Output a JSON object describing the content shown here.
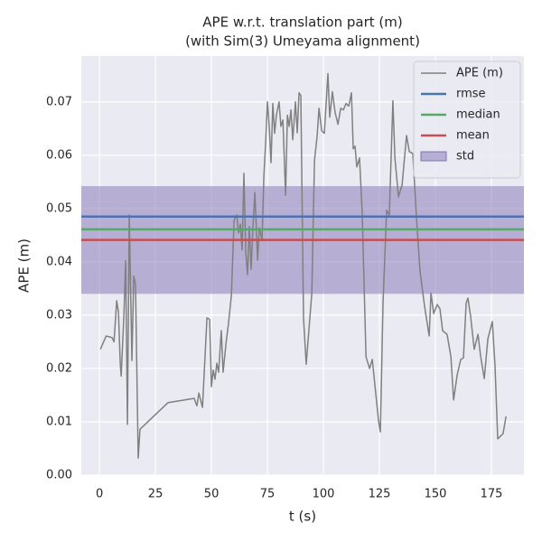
{
  "chart_data": {
    "type": "line",
    "title": "APE w.r.t. translation part (m)",
    "subtitle": "(with Sim(3) Umeyama alignment)",
    "xlabel": "t (s)",
    "ylabel": "APE (m)",
    "xlim": [
      -8.1,
      189.5
    ],
    "ylim": [
      0,
      0.0786
    ],
    "xticks": [
      0,
      25,
      50,
      75,
      100,
      125,
      150,
      175
    ],
    "yticks": [
      {
        "value": 0,
        "label": "0.00"
      },
      {
        "value": 0.01,
        "label": "0.01"
      },
      {
        "value": 0.02,
        "label": "0.02"
      },
      {
        "value": 0.03,
        "label": "0.03"
      },
      {
        "value": 0.04,
        "label": "0.04"
      },
      {
        "value": 0.05,
        "label": "0.05"
      },
      {
        "value": 0.06,
        "label": "0.06"
      },
      {
        "value": 0.07,
        "label": "0.07"
      }
    ],
    "grid": true,
    "legend": "upper right",
    "series": [
      {
        "name": "APE (m)",
        "color": "#808080",
        "x": [
          0.4,
          3,
          5.6,
          6.5,
          7.7,
          8.5,
          9.3,
          9.7,
          10.9,
          11.7,
          12.5,
          13.3,
          14.5,
          15.3,
          16.1,
          17.3,
          18.1,
          30.6,
          42.3,
          43.5,
          44.4,
          46,
          48,
          49.2,
          50,
          50.8,
          51.6,
          52.4,
          53.2,
          54.4,
          55.2,
          56.5,
          57.7,
          58.9,
          60.1,
          61.3,
          62.1,
          62.9,
          63.7,
          64.5,
          65.3,
          66.1,
          66.9,
          67.7,
          68.5,
          69.4,
          70.6,
          71.4,
          72.6,
          73.4,
          74.2,
          75,
          75.8,
          76.6,
          77.4,
          78.2,
          79,
          80.2,
          81,
          81.9,
          83.1,
          83.9,
          84.7,
          85.5,
          86.3,
          87.5,
          88.3,
          89.1,
          89.9,
          91.1,
          92.3,
          94.8,
          96,
          97.2,
          98,
          99.2,
          100.4,
          102,
          102.8,
          104,
          105.2,
          106.5,
          107.7,
          108.9,
          110.1,
          111.3,
          112.5,
          113.3,
          114.1,
          114.9,
          116.1,
          117.3,
          119,
          120.6,
          121.8,
          124.6,
          125.4,
          126.6,
          128.2,
          129.4,
          131,
          131.9,
          133.5,
          135.1,
          137.1,
          138.3,
          139.9,
          141.5,
          143.1,
          145.2,
          147.2,
          148,
          149.2,
          150.8,
          152,
          153.2,
          155.2,
          156.9,
          158.1,
          159.7,
          161.3,
          162.5,
          163.7,
          164.5,
          165.7,
          167.3,
          169,
          170.2,
          171.8,
          173.4,
          175.4,
          176.6,
          177.8,
          180.2,
          181.5
        ],
        "values": [
          0.0236,
          0.0261,
          0.0258,
          0.025,
          0.0327,
          0.0305,
          0.0208,
          0.0186,
          0.0298,
          0.0402,
          0.0095,
          0.0488,
          0.0215,
          0.0373,
          0.0358,
          0.0032,
          0.0086,
          0.0136,
          0.0144,
          0.013,
          0.0154,
          0.0127,
          0.0295,
          0.0292,
          0.0166,
          0.0197,
          0.018,
          0.021,
          0.0193,
          0.0271,
          0.0193,
          0.0247,
          0.0288,
          0.0337,
          0.0478,
          0.0488,
          0.0454,
          0.0471,
          0.0422,
          0.0566,
          0.042,
          0.0376,
          0.0466,
          0.0386,
          0.0463,
          0.053,
          0.0403,
          0.0464,
          0.0441,
          0.0561,
          0.0624,
          0.07,
          0.0654,
          0.0586,
          0.0697,
          0.0641,
          0.0675,
          0.07,
          0.0654,
          0.0666,
          0.0525,
          0.0675,
          0.0654,
          0.0685,
          0.0629,
          0.07,
          0.0642,
          0.0717,
          0.0712,
          0.0295,
          0.0208,
          0.0341,
          0.059,
          0.0637,
          0.0688,
          0.0646,
          0.0641,
          0.0753,
          0.0671,
          0.0719,
          0.068,
          0.0658,
          0.0688,
          0.0685,
          0.0697,
          0.0692,
          0.0717,
          0.0612,
          0.0617,
          0.0578,
          0.0595,
          0.0493,
          0.0222,
          0.02,
          0.0217,
          0.0102,
          0.0081,
          0.0322,
          0.0497,
          0.0488,
          0.0702,
          0.0595,
          0.0522,
          0.0544,
          0.0637,
          0.0607,
          0.0603,
          0.0485,
          0.0383,
          0.0315,
          0.0261,
          0.0341,
          0.0303,
          0.032,
          0.0312,
          0.0271,
          0.0264,
          0.0222,
          0.0141,
          0.0188,
          0.0217,
          0.022,
          0.0322,
          0.0332,
          0.0298,
          0.0236,
          0.0264,
          0.0222,
          0.0181,
          0.0256,
          0.0288,
          0.0205,
          0.0068,
          0.0078,
          0.011
        ]
      }
    ],
    "hlines": [
      {
        "name": "rmse",
        "color": "#4c72b0",
        "value": 0.0485
      },
      {
        "name": "median",
        "color": "#55a868",
        "value": 0.0461
      },
      {
        "name": "mean",
        "color": "#c44e52",
        "value": 0.0441
      }
    ],
    "std": {
      "name": "std",
      "color": "#8172b3",
      "value": 0.0101
    }
  }
}
